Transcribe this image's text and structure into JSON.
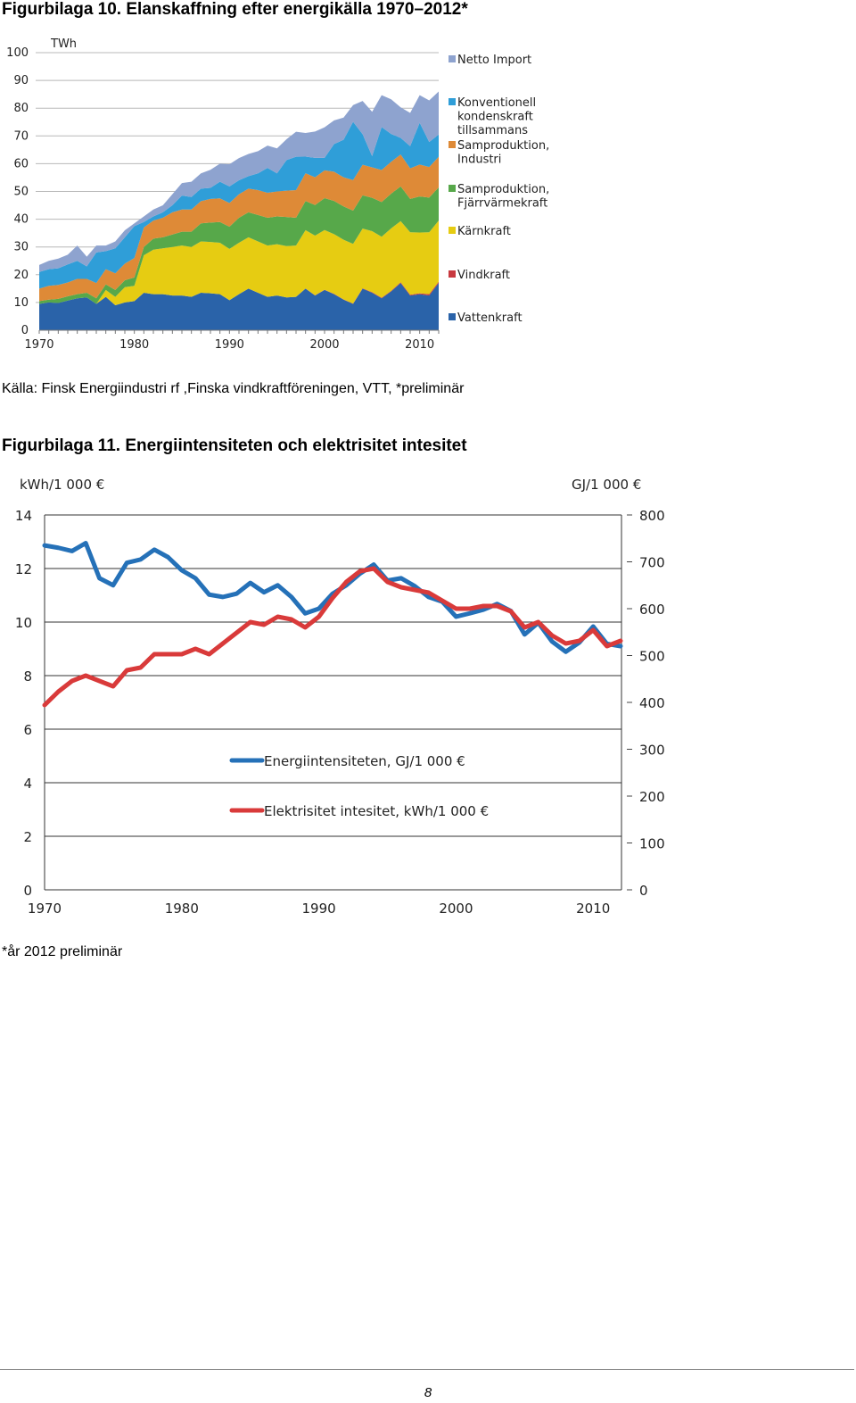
{
  "figure1": {
    "heading": "Figurbilaga 10. Elanskaffning efter energikälla 1970–2012*",
    "source": "Källa: Finsk Energiindustri rf ,Finska vindkraftföreningen, VTT, *preliminär"
  },
  "figure2": {
    "heading": "Figurbilaga 11. Energiintensiteten och elektrisitet intesitet",
    "footnote": "*år 2012 preliminär"
  },
  "page_number": "8",
  "chart_data": [
    {
      "type": "area",
      "stacked": true,
      "ylabel": "TWh",
      "ylim": [
        0,
        100
      ],
      "yticks": [
        "0",
        "10",
        "20",
        "30",
        "40",
        "50",
        "60",
        "70",
        "80",
        "90",
        "100"
      ],
      "xticks": [
        "1970",
        "1980",
        "1990",
        "2000",
        "2010"
      ],
      "x": [
        1970,
        1971,
        1972,
        1973,
        1974,
        1975,
        1976,
        1977,
        1978,
        1979,
        1980,
        1981,
        1982,
        1983,
        1984,
        1985,
        1986,
        1987,
        1988,
        1989,
        1990,
        1991,
        1992,
        1993,
        1994,
        1995,
        1996,
        1997,
        1998,
        1999,
        2000,
        2001,
        2002,
        2003,
        2004,
        2005,
        2006,
        2007,
        2008,
        2009,
        2010,
        2011,
        2012
      ],
      "series": [
        {
          "name": "Vattenkraft",
          "color": "#2a63a9",
          "values": [
            9.5,
            10,
            9.8,
            10.7,
            11.5,
            11.8,
            9.5,
            12,
            9,
            10,
            10.5,
            13.5,
            13,
            13,
            12.5,
            12.5,
            12,
            13.5,
            13.3,
            13,
            10.8,
            13,
            15,
            13.5,
            12,
            12.5,
            11.8,
            12,
            15,
            12.5,
            14.5,
            13,
            11,
            9.5,
            15,
            13.5,
            11.5,
            14,
            17,
            12.5,
            13,
            12.5,
            17
          ]
        },
        {
          "name": "Vindkraft",
          "color": "#c8393f",
          "values": [
            0,
            0,
            0,
            0,
            0,
            0,
            0,
            0,
            0,
            0,
            0,
            0,
            0,
            0,
            0,
            0,
            0,
            0,
            0,
            0,
            0,
            0,
            0,
            0,
            0,
            0,
            0,
            0,
            0.05,
            0.1,
            0.1,
            0.1,
            0.1,
            0.1,
            0.1,
            0.2,
            0.2,
            0.2,
            0.3,
            0.3,
            0.3,
            0.5,
            0.5
          ]
        },
        {
          "name": "Kärnkraft",
          "color": "#e6cc12",
          "values": [
            0,
            0,
            0,
            0,
            0,
            0,
            0,
            2.5,
            3,
            5.5,
            5.5,
            13.5,
            16,
            16.5,
            17.5,
            18,
            18,
            18.5,
            18.5,
            18.5,
            18.5,
            18.5,
            18.5,
            18.5,
            18.5,
            18.5,
            18.5,
            18.5,
            21,
            21.5,
            21.5,
            21.5,
            21.5,
            21.5,
            21.5,
            22,
            22,
            22.5,
            22,
            22.5,
            21.9,
            22.3,
            22
          ]
        },
        {
          "name": "Samproduktion, Fjärrvärmekraft",
          "color": "#57a84a",
          "values": [
            1,
            1,
            1.5,
            1.5,
            1.5,
            1.7,
            2,
            2,
            2.5,
            2.5,
            3,
            3,
            4,
            4,
            4.5,
            5,
            5.5,
            6.5,
            7,
            7.5,
            8,
            9,
            9,
            9.5,
            10,
            10,
            10.5,
            10,
            10.5,
            11,
            11.5,
            12,
            12,
            12,
            12,
            12,
            12.5,
            12.5,
            12.5,
            12,
            13,
            12.5,
            12
          ]
        },
        {
          "name": "Samproduktion, Industri",
          "color": "#de8a37",
          "values": [
            4.5,
            5,
            5,
            5,
            5.5,
            5,
            5.5,
            5.5,
            6,
            6,
            7,
            7,
            6.5,
            7,
            8,
            8,
            8,
            8,
            8.5,
            8.5,
            8.5,
            8.5,
            8.5,
            9,
            9,
            9,
            9.5,
            10,
            10,
            10,
            10,
            10.5,
            10.5,
            11,
            11,
            11,
            11.5,
            11.5,
            11.5,
            11,
            11.5,
            11,
            11
          ]
        },
        {
          "name": "Konventionell kondenskraft tillsammans",
          "color": "#2f9ed8",
          "values": [
            6,
            6,
            6,
            6.5,
            6.5,
            4.5,
            11,
            6.5,
            9,
            9.5,
            11.5,
            2,
            1.5,
            2,
            2.5,
            5,
            4.5,
            4.5,
            4,
            6,
            6,
            5,
            4.5,
            6,
            9,
            6.5,
            11,
            12,
            6,
            7,
            4.5,
            10,
            13.5,
            21,
            11,
            4,
            15.5,
            10,
            6,
            8,
            15,
            9,
            8
          ]
        },
        {
          "name": "Netto Import",
          "color": "#8ea3cf",
          "values": [
            2.5,
            3,
            3.5,
            3.5,
            5.5,
            3.5,
            2.5,
            2,
            2.5,
            2.5,
            1,
            2,
            2.5,
            2.5,
            4,
            4.5,
            5.5,
            5.5,
            6.5,
            6.5,
            8,
            8,
            8,
            8,
            8,
            9,
            7.5,
            9,
            8.5,
            9.5,
            11,
            8.5,
            8,
            6,
            12,
            16,
            11.5,
            12.5,
            11,
            12,
            10,
            15,
            15.5
          ]
        }
      ]
    },
    {
      "type": "line",
      "y_left_label": "kWh/1 000 €",
      "y_right_label": "GJ/1 000 €",
      "y_left_range": [
        0,
        14
      ],
      "y_right_range": [
        0,
        800
      ],
      "y_left_ticks": [
        "0",
        "2",
        "4",
        "6",
        "8",
        "10",
        "12",
        "14"
      ],
      "y_right_ticks": [
        "0",
        "100",
        "200",
        "300",
        "400",
        "500",
        "600",
        "700",
        "800"
      ],
      "xticks": [
        "1970",
        "1980",
        "1990",
        "2000",
        "2010"
      ],
      "x": [
        1970,
        1971,
        1972,
        1973,
        1974,
        1975,
        1976,
        1977,
        1978,
        1979,
        1980,
        1981,
        1982,
        1983,
        1984,
        1985,
        1986,
        1987,
        1988,
        1989,
        1990,
        1991,
        1992,
        1993,
        1994,
        1995,
        1996,
        1997,
        1998,
        1999,
        2000,
        2001,
        2002,
        2003,
        2004,
        2005,
        2006,
        2007,
        2008,
        2009,
        2010,
        2011,
        2012
      ],
      "series": [
        {
          "name": "Energiintensiteten,  GJ/1 000 €",
          "axis": "right",
          "color": "#2571b8",
          "values": [
            735,
            730,
            723,
            740,
            665,
            650,
            698,
            705,
            726,
            710,
            682,
            665,
            630,
            625,
            632,
            655,
            635,
            650,
            625,
            590,
            600,
            632,
            650,
            675,
            694,
            660,
            665,
            648,
            625,
            615,
            583,
            590,
            598,
            610,
            595,
            545,
            570,
            530,
            508,
            528,
            562,
            525,
            520
          ]
        },
        {
          "name": "Elektrisitet intesitet, kWh/1 000 €",
          "axis": "left",
          "color": "#d93a3a",
          "values": [
            6.9,
            7.4,
            7.8,
            8.0,
            7.8,
            7.6,
            8.2,
            8.3,
            8.8,
            8.8,
            8.8,
            9.0,
            8.8,
            9.2,
            9.6,
            10.0,
            9.9,
            10.2,
            10.1,
            9.8,
            10.2,
            10.9,
            11.5,
            11.9,
            12.0,
            11.5,
            11.3,
            11.2,
            11.1,
            10.8,
            10.5,
            10.5,
            10.6,
            10.6,
            10.4,
            9.8,
            10.0,
            9.5,
            9.2,
            9.3,
            9.7,
            9.1,
            9.3
          ]
        }
      ]
    }
  ]
}
